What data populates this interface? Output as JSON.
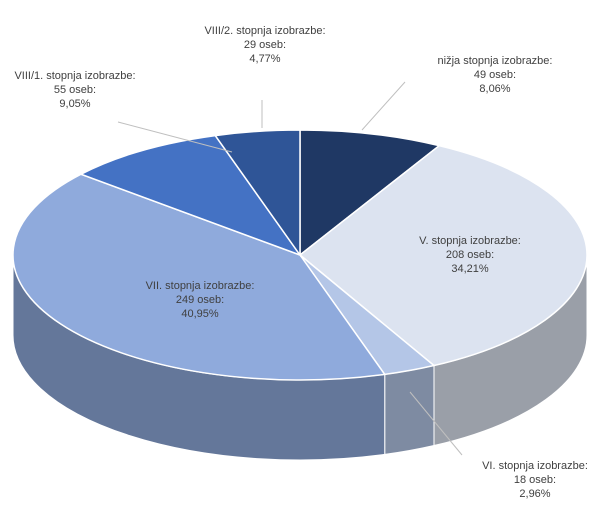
{
  "chart_data": {
    "type": "pie3d",
    "categories": [
      "nižja stopnja izobrazbe:",
      "V. stopnja izobrazbe:",
      "VI. stopnja izobrazbe:",
      "VII. stopnja izobrazbe:",
      "VIII/1. stopnja izobrazbe:",
      "VIII/2. stopnja izobrazbe:"
    ],
    "values": [
      49,
      208,
      18,
      249,
      55,
      29
    ],
    "value_labels": [
      "49 oseb:",
      "208 oseb:",
      "18 oseb:",
      "249 oseb:",
      "55 oseb:",
      "29 oseb:"
    ],
    "percents": [
      8.06,
      34.21,
      2.96,
      40.95,
      9.05,
      4.77
    ],
    "percent_labels": [
      "8,06%",
      "34,21%",
      "2,96%",
      "40,95%",
      "9,05%",
      "4,77%"
    ],
    "colors": [
      "#1f3864",
      "#dce3f0",
      "#b4c6e7",
      "#8faadc",
      "#4472c4",
      "#2f5597"
    ]
  }
}
